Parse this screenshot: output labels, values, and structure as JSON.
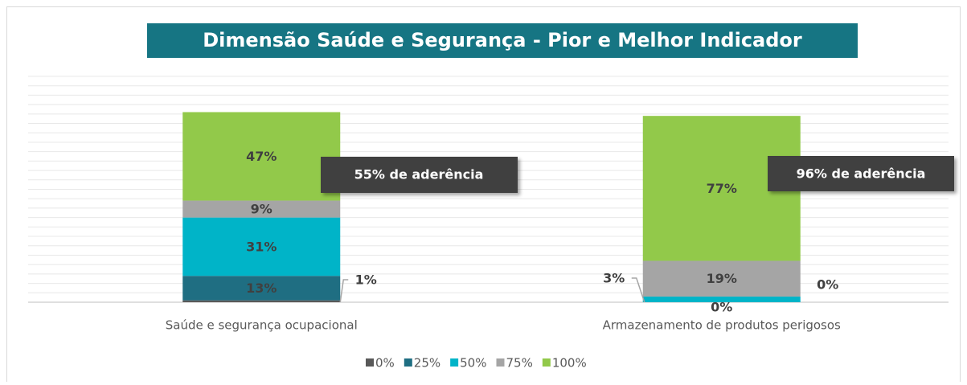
{
  "chart_data": {
    "type": "stacked_bar",
    "title": "Dimensão Saúde e Segurança - Pior e Melhor Indicador",
    "categories": [
      "Saúde e segurança ocupacional",
      "Armazenamento de produtos perigosos"
    ],
    "series": [
      {
        "name": "0%",
        "color": "#595959",
        "values": [
          1,
          0
        ],
        "value_labels": [
          "1%",
          "0%"
        ]
      },
      {
        "name": "25%",
        "color": "#1f6e82",
        "values": [
          13,
          0
        ],
        "value_labels": [
          "13%",
          "0%"
        ]
      },
      {
        "name": "50%",
        "color": "#00b4c8",
        "values": [
          31,
          3
        ],
        "value_labels": [
          "31%",
          "3%"
        ]
      },
      {
        "name": "75%",
        "color": "#a5a5a5",
        "values": [
          9,
          19
        ],
        "value_labels": [
          "9%",
          "19%"
        ]
      },
      {
        "name": "100%",
        "color": "#92c94a",
        "values": [
          47,
          77
        ],
        "value_labels": [
          "47%",
          "77%"
        ]
      }
    ],
    "annotations": [
      "55% de aderência",
      "96% de aderência"
    ],
    "ylim": [
      0,
      120
    ],
    "yticks": [
      0,
      5,
      10,
      15,
      20,
      25,
      30,
      35,
      40,
      45,
      50,
      55,
      60,
      65,
      70,
      75,
      80,
      85,
      90,
      95,
      100,
      105,
      110,
      115,
      120
    ],
    "grid": true
  }
}
